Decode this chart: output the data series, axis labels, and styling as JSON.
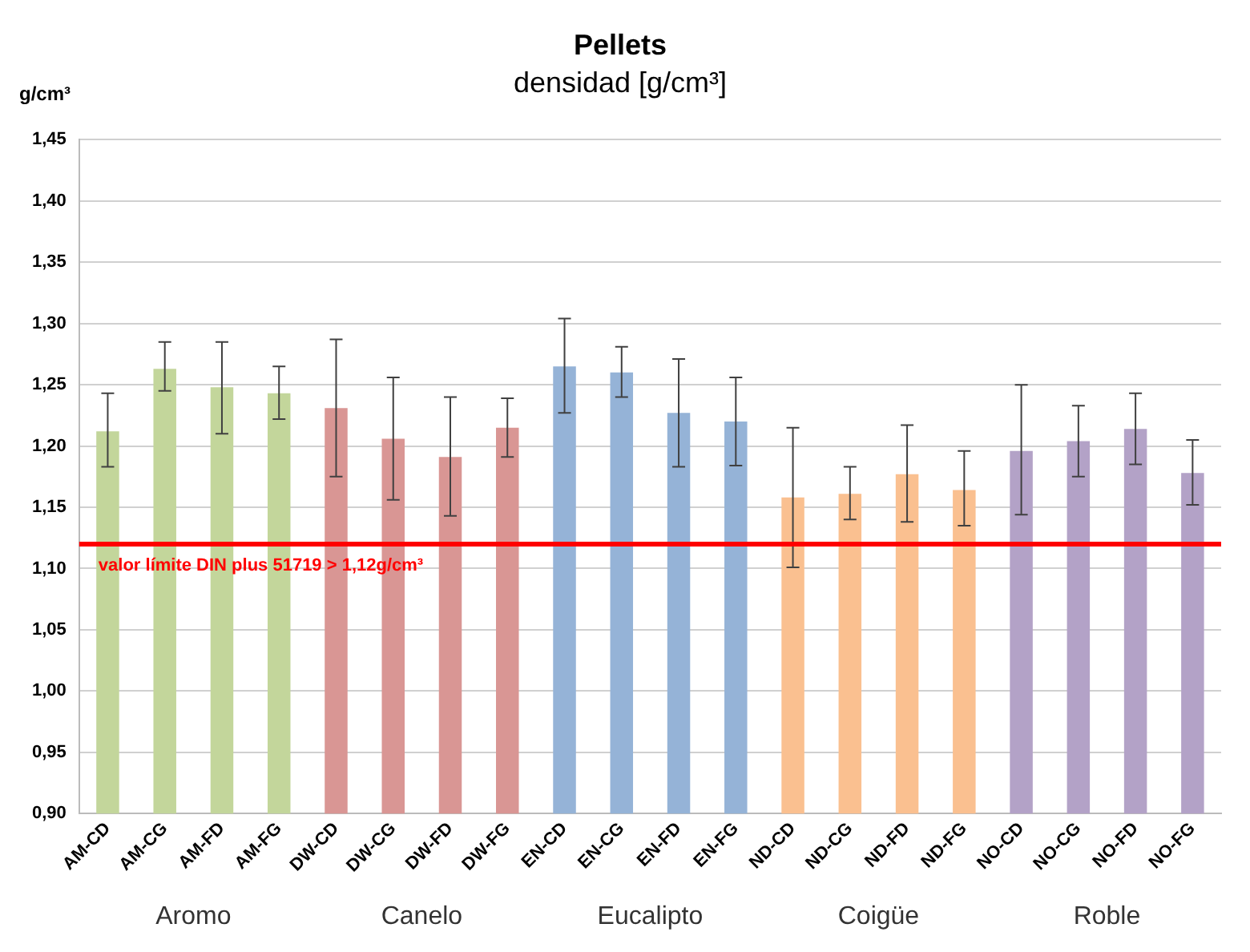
{
  "chart_data": {
    "type": "bar",
    "title": "Pellets",
    "subtitle": "densidad [g/cm³]",
    "ylabel": "g/cm³",
    "categories": [
      "AM-CD",
      "AM-CG",
      "AM-FD",
      "AM-FG",
      "DW-CD",
      "DW-CG",
      "DW-FD",
      "DW-FG",
      "EN-CD",
      "EN-CG",
      "EN-FD",
      "EN-FG",
      "ND-CD",
      "ND-CG",
      "ND-FD",
      "ND-FG",
      "NO-CD",
      "NO-CG",
      "NO-FD",
      "NO-FG"
    ],
    "values": [
      1.212,
      1.263,
      1.248,
      1.243,
      1.231,
      1.206,
      1.191,
      1.215,
      1.265,
      1.26,
      1.227,
      1.22,
      1.158,
      1.161,
      1.177,
      1.164,
      1.196,
      1.204,
      1.214,
      1.178
    ],
    "errors": [
      [
        1.183,
        1.243
      ],
      [
        1.245,
        1.285
      ],
      [
        1.21,
        1.285
      ],
      [
        1.222,
        1.265
      ],
      [
        1.175,
        1.287
      ],
      [
        1.156,
        1.256
      ],
      [
        1.143,
        1.24
      ],
      [
        1.191,
        1.239
      ],
      [
        1.227,
        1.304
      ],
      [
        1.24,
        1.281
      ],
      [
        1.183,
        1.271
      ],
      [
        1.184,
        1.256
      ],
      [
        1.101,
        1.215
      ],
      [
        1.14,
        1.183
      ],
      [
        1.138,
        1.217
      ],
      [
        1.135,
        1.196
      ],
      [
        1.144,
        1.25
      ],
      [
        1.175,
        1.233
      ],
      [
        1.185,
        1.243
      ],
      [
        1.152,
        1.205
      ]
    ],
    "colors": [
      "#c3d69b",
      "#c3d69b",
      "#c3d69b",
      "#c3d69b",
      "#d99694",
      "#d99694",
      "#d99694",
      "#d99694",
      "#95b3d7",
      "#95b3d7",
      "#95b3d7",
      "#95b3d7",
      "#fac090",
      "#fac090",
      "#fac090",
      "#fac090",
      "#b3a2c7",
      "#b3a2c7",
      "#b3a2c7",
      "#b3a2c7"
    ],
    "ylim": [
      0.9,
      1.45
    ],
    "yticks": [
      {
        "value": 0.9,
        "label": "0,90"
      },
      {
        "value": 0.95,
        "label": "0,95"
      },
      {
        "value": 1.0,
        "label": "1,00"
      },
      {
        "value": 1.05,
        "label": "1,05"
      },
      {
        "value": 1.1,
        "label": "1,10"
      },
      {
        "value": 1.15,
        "label": "1,15"
      },
      {
        "value": 1.2,
        "label": "1,20"
      },
      {
        "value": 1.25,
        "label": "1,25"
      },
      {
        "value": 1.3,
        "label": "1,30"
      },
      {
        "value": 1.35,
        "label": "1,35"
      },
      {
        "value": 1.4,
        "label": "1,40"
      },
      {
        "value": 1.45,
        "label": "1,45"
      }
    ],
    "ref_lines": [
      {
        "axis": "y",
        "value": 1.12,
        "label": "valor límite DIN plus 51719 > 1,12g/cm³",
        "color": "#ff0000"
      }
    ],
    "annotations": [
      "Aromo",
      "Canelo",
      "Eucalipto",
      "Coigüe",
      "Roble"
    ],
    "grid": "y",
    "legend": false
  }
}
